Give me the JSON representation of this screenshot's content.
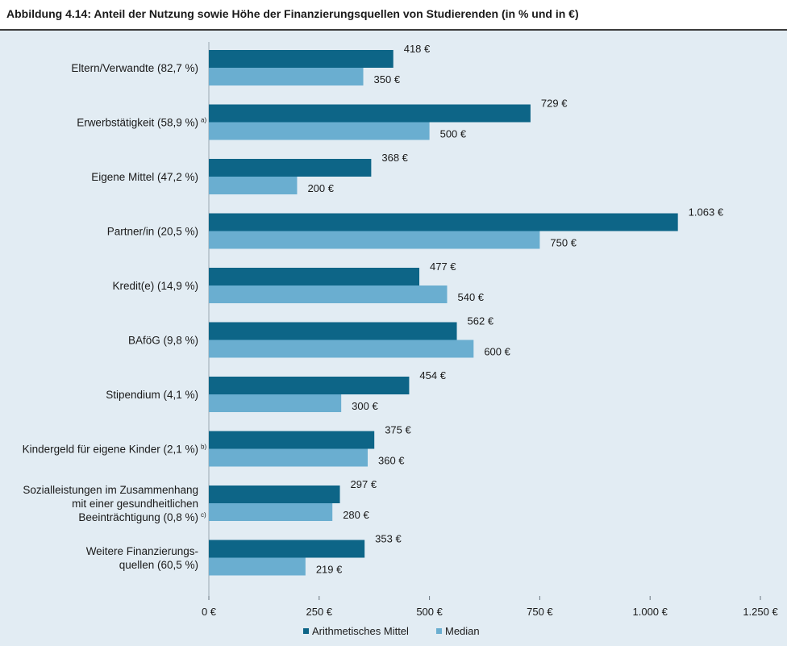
{
  "title": "Abbildung 4.14: Anteil der Nutzung sowie Höhe der Finanzierungsquellen von Studierenden (in % und in €)",
  "chart_data": {
    "type": "bar",
    "orientation": "horizontal",
    "categories": [
      {
        "lines": [
          "Eltern/Verwandte (82,7 %)"
        ],
        "footnote": ""
      },
      {
        "lines": [
          "Erwerbstätigkeit (58,9 %)"
        ],
        "footnote": "a)"
      },
      {
        "lines": [
          "Eigene Mittel (47,2 %)"
        ],
        "footnote": ""
      },
      {
        "lines": [
          "Partner/in (20,5 %)"
        ],
        "footnote": ""
      },
      {
        "lines": [
          "Kredit(e) (14,9 %)"
        ],
        "footnote": ""
      },
      {
        "lines": [
          "BAföG (9,8 %)"
        ],
        "footnote": ""
      },
      {
        "lines": [
          "Stipendium (4,1 %)"
        ],
        "footnote": ""
      },
      {
        "lines": [
          "Kindergeld für eigene Kinder (2,1 %)"
        ],
        "footnote": "b)"
      },
      {
        "lines": [
          "Sozialleistungen im Zusammenhang",
          "mit einer gesundheitlichen",
          "Beeinträchtigung (0,8 %)"
        ],
        "footnote": "c)"
      },
      {
        "lines": [
          "Weitere Finanzierungs-",
          "quellen (60,5 %)"
        ],
        "footnote": ""
      }
    ],
    "series": [
      {
        "name": "Arithmetisches Mittel",
        "color": "#0d6587",
        "values": [
          418,
          729,
          368,
          1063,
          477,
          562,
          454,
          375,
          297,
          353
        ],
        "value_labels": [
          "418 €",
          "729 €",
          "368 €",
          "1.063 €",
          "477 €",
          "562 €",
          "454 €",
          "375 €",
          "297 €",
          "353 €"
        ]
      },
      {
        "name": "Median",
        "color": "#6aaed0",
        "values": [
          350,
          500,
          200,
          750,
          540,
          600,
          300,
          360,
          280,
          219
        ],
        "value_labels": [
          "350 €",
          "500 €",
          "200 €",
          "750 €",
          "540 €",
          "600 €",
          "300 €",
          "360 €",
          "280 €",
          "219 €"
        ]
      }
    ],
    "xlim": [
      0,
      1250
    ],
    "xticks": [
      0,
      250,
      500,
      750,
      1000,
      1250
    ],
    "xtick_labels": [
      "0 €",
      "250 €",
      "500 €",
      "750 €",
      "1.000 €",
      "1.250 €"
    ],
    "grid": false,
    "legend_position": "bottom"
  }
}
